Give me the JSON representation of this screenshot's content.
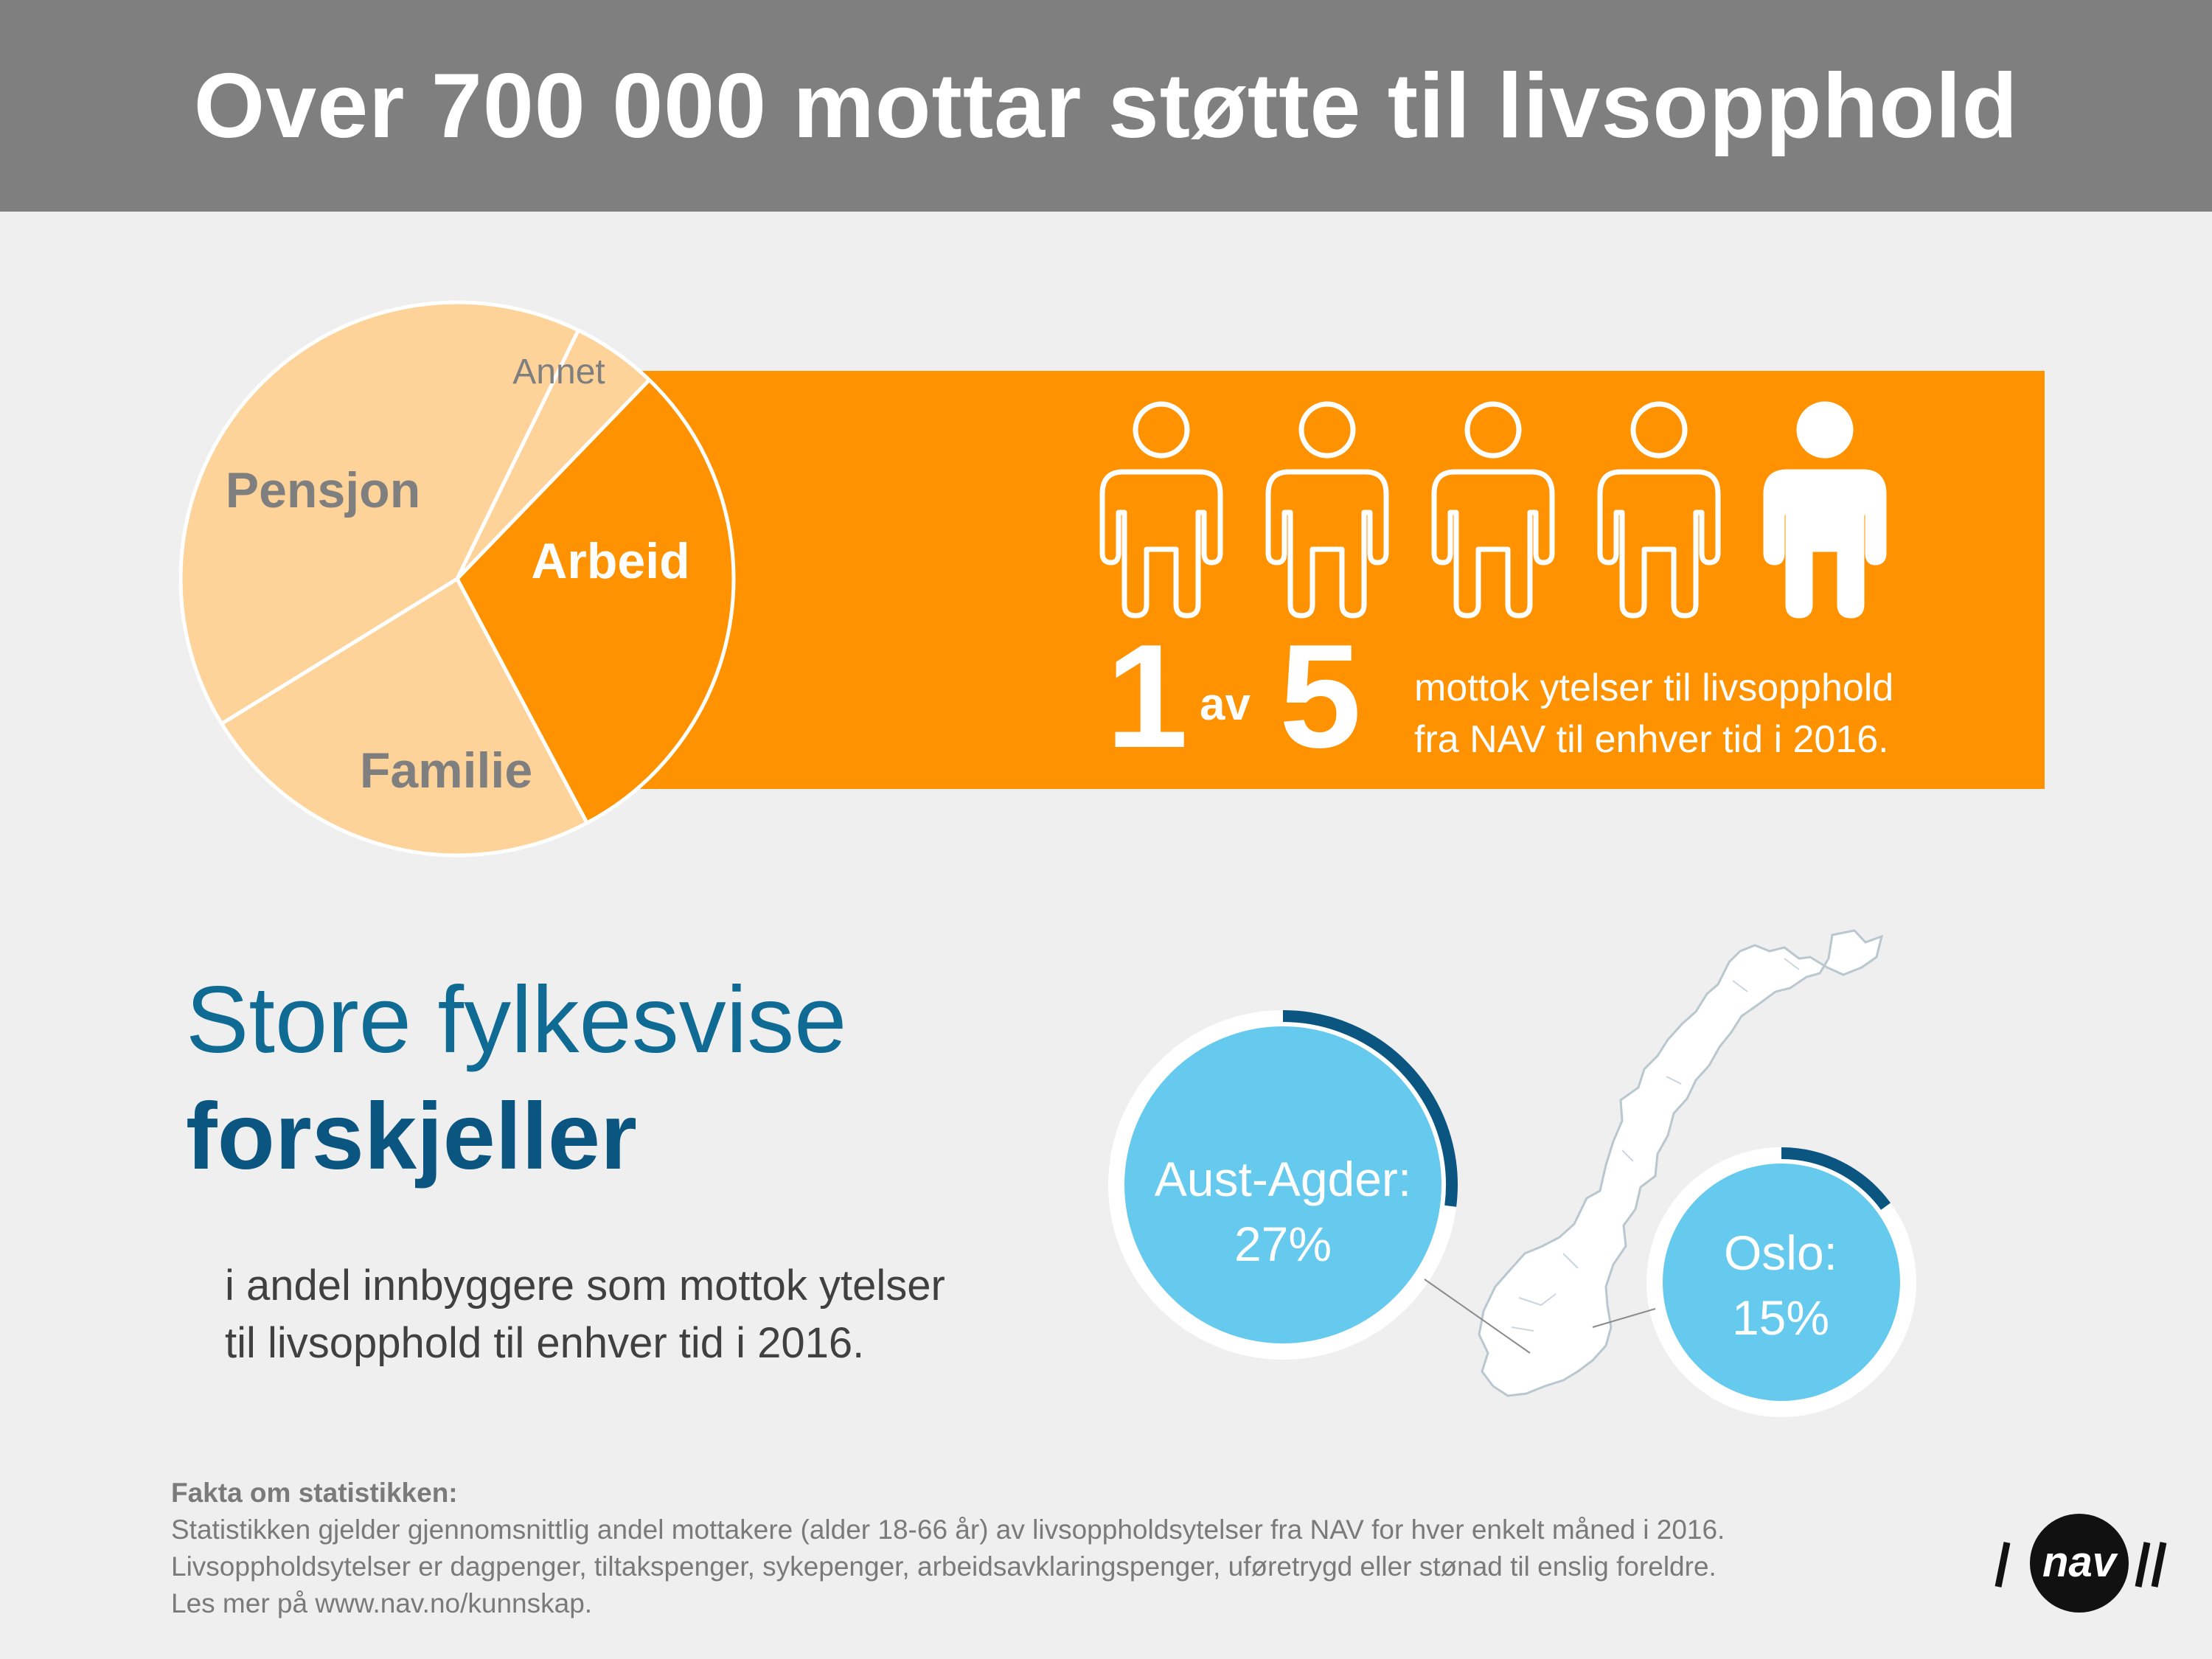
{
  "header": {
    "title": "Over 700 000 mottar støtte til livsopphold"
  },
  "pie": {
    "slices": [
      {
        "label": "Arbeid",
        "value": 30,
        "color": "#ff9200",
        "text_color": "#ffffff"
      },
      {
        "label": "Familie",
        "value": 24,
        "color": "#fdd39a",
        "text_color": "#7f7f7f"
      },
      {
        "label": "Pensjon",
        "value": 41,
        "color": "#fdd39a",
        "text_color": "#7f7f7f"
      },
      {
        "label": "Annet",
        "value": 5,
        "color": "#fdd39a",
        "text_color": "#7f7f7f"
      }
    ]
  },
  "stat": {
    "num1": "1",
    "av": "av",
    "num2": "5",
    "line1": "mottok ytelser til livsopphold",
    "line2": "fra NAV til enhver tid i 2016.",
    "people_total": 5,
    "people_filled": 1
  },
  "county": {
    "title_light": "Store fylkesvise",
    "title_bold": "forskjeller",
    "sub_line1": "i andel innbyggere som mottok ytelser",
    "sub_line2": "til livsopphold til enhver tid i 2016.",
    "bubbles": [
      {
        "label": "Aust-Agder:",
        "value": "27%",
        "fraction": 0.27
      },
      {
        "label": "Oslo:",
        "value": "15%",
        "fraction": 0.15
      }
    ],
    "colors": {
      "bubble": "#66c9ee",
      "ring": "#0b5680"
    }
  },
  "facts": {
    "title": "Fakta om statistikken:",
    "line1": "Statistikken gjelder gjennomsnittlig andel mottakere (alder 18-66 år) av livsoppholdsytelser fra NAV for hver enkelt måned i 2016.",
    "line2": "Livsoppholdsytelser er dagpenger, tiltakspenger, sykepenger, arbeidsavklaringspenger, uføretrygd eller stønad til enslig foreldre.",
    "line3": "Les mer på www.nav.no/kunnskap."
  },
  "logo": {
    "text": "nav"
  }
}
